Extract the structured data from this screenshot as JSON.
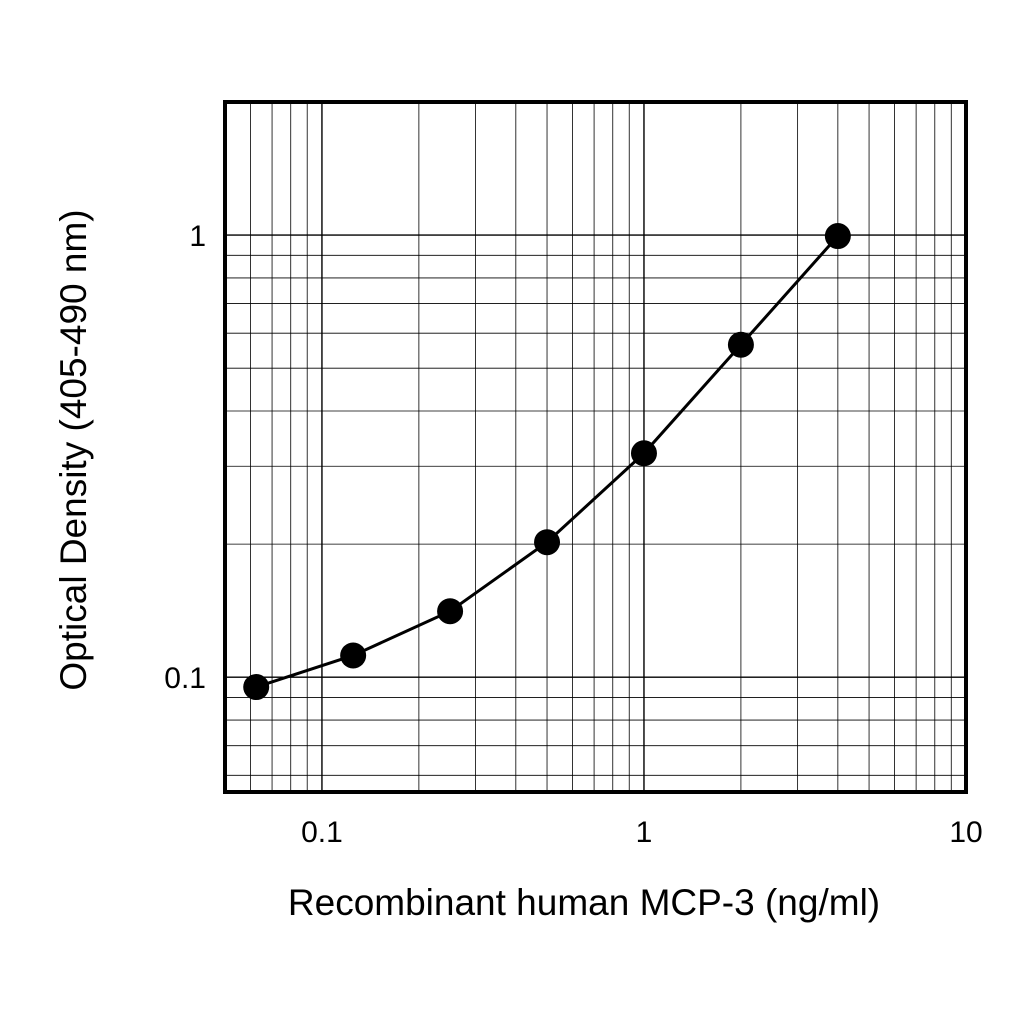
{
  "chart_data": {
    "type": "line",
    "xlabel": "Recombinant human MCP-3 (ng/ml)",
    "ylabel": "Optical Density (405-490 nm)",
    "x_scale": "log",
    "y_scale": "log",
    "xlim": [
      0.05,
      10
    ],
    "ylim": [
      0.055,
      2.0
    ],
    "grid": true,
    "x_ticks": [
      {
        "value": 0.1,
        "label": "0.1"
      },
      {
        "value": 1,
        "label": "1"
      },
      {
        "value": 10,
        "label": "10"
      }
    ],
    "y_ticks": [
      {
        "value": 0.1,
        "label": "0.1"
      },
      {
        "value": 1,
        "label": "1"
      }
    ],
    "series": [
      {
        "x": [
          0.0625,
          0.125,
          0.25,
          0.5,
          1.0,
          2.0,
          4.0
        ],
        "y": [
          0.095,
          0.112,
          0.141,
          0.202,
          0.321,
          0.565,
          0.995
        ]
      }
    ],
    "line_color": "#000000",
    "marker_color": "#000000",
    "grid_color": "#000000"
  }
}
